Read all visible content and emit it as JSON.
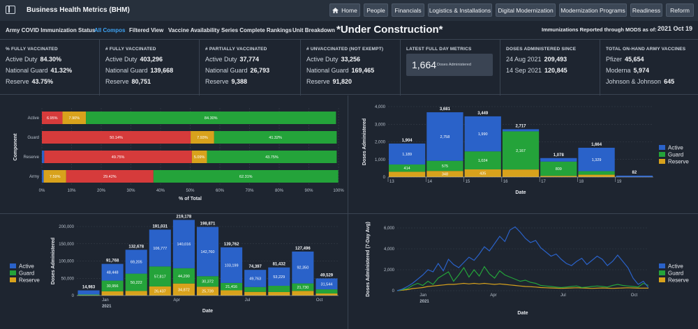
{
  "app": {
    "title": "Business Health Metrics (BHM)"
  },
  "nav": {
    "home": "Home",
    "people": "People",
    "financials": "Financials",
    "logistics": "Logistics & Installations",
    "digital": "Digital Modernization",
    "programs": "Modernization Programs",
    "readiness": "Readiness",
    "reform": "Reform"
  },
  "tabs": {
    "t1": "Army COVID Immunization Status",
    "t2": "All Compos",
    "t3": "Filtered View",
    "t4": "Vaccine Availability",
    "t5": "Series Complete Rankings",
    "t6": "Unit Breakdown"
  },
  "under_construction": "*Under Construction*",
  "mods": {
    "label": "Immunizations Reported through MODS as of:",
    "date": "2021 Oct 19"
  },
  "kpi": {
    "fully_pct": {
      "title": "% FULLY VACCINATED",
      "r1l": "Active Duty",
      "r1v": "84.30%",
      "r2l": "National Guard",
      "r2v": "41.32%",
      "r3l": "Reserve",
      "r3v": "43.75%"
    },
    "fully_num": {
      "title": "# FULLY VACCINATED",
      "r1l": "Active Duty",
      "r1v": "403,296",
      "r2l": "National Guard",
      "r2v": "139,668",
      "r3l": "Reserve",
      "r3v": "80,751"
    },
    "partial": {
      "title": "# PARTIALLY VACCINATED",
      "r1l": "Active Duty",
      "r1v": "37,774",
      "r2l": "National Guard",
      "r2v": "26,793",
      "r3l": "Reserve",
      "r3v": "9,388"
    },
    "unvax": {
      "title": "# UNVACCINATED (NOT EXEMPT)",
      "r1l": "Active Duty",
      "r1v": "33,256",
      "r2l": "National Guard",
      "r2v": "169,465",
      "r3l": "Reserve",
      "r3v": "91,820"
    },
    "latest": {
      "title": "LATEST FULL DAY METRICS",
      "value": "1,664",
      "label": "Doses Administered"
    },
    "since": {
      "title": "DOSES ADMINISTERED SINCE",
      "r1l": "24 Aug 2021",
      "r1v": "209,493",
      "r2l": "14 Sep 2021",
      "r2v": "120,845"
    },
    "onhand": {
      "title": "TOTAL ON-HAND ARMY VACCINES",
      "r1l": "Pfizer",
      "r1v": "45,654",
      "r2l": "Moderna",
      "r2v": "5,974",
      "r3l": "Johnson & Johnson",
      "r3v": "645"
    }
  },
  "colors": {
    "active": "#2a62c9",
    "guard": "#24a33a",
    "reserve": "#d8a21c",
    "red": "#d63b3b",
    "axis": "#b9c2cd",
    "grid": "#39414d"
  },
  "chart_data": [
    {
      "type": "bar",
      "orientation": "horizontal-stacked",
      "ylabel": "Component",
      "xlabel": "% of Total",
      "categories": [
        "Active",
        "Guard",
        "Reserve",
        "Army"
      ],
      "segments": [
        {
          "values": [
            6.95,
            7.9,
            84.3
          ],
          "labels": [
            "6.95%",
            "7.90%",
            "84.30%"
          ],
          "colors": [
            "red",
            "reserve",
            "guard"
          ]
        },
        {
          "values": [
            50.14,
            7.93,
            41.32
          ],
          "labels": [
            "50.14%",
            "7.93%",
            "41.32%"
          ],
          "colors": [
            "red",
            "reserve",
            "guard"
          ]
        },
        {
          "values": [
            0.8,
            49.75,
            5.09,
            43.75
          ],
          "labels": [
            "",
            "49.75%",
            "5.09%",
            "43.75%"
          ],
          "colors": [
            "active",
            "red",
            "reserve",
            "guard"
          ]
        },
        {
          "values": [
            0.6,
            7.59,
            29.42,
            62.31
          ],
          "labels": [
            "",
            "7.59%",
            "29.42%",
            "62.31%"
          ],
          "colors": [
            "active",
            "reserve",
            "red",
            "guard"
          ]
        }
      ],
      "xticks": [
        "0%",
        "10%",
        "20%",
        "30%",
        "40%",
        "50%",
        "60%",
        "70%",
        "80%",
        "90%",
        "100%"
      ]
    },
    {
      "type": "bar",
      "orientation": "vertical-stacked",
      "xlabel": "Date",
      "ylabel": "Doses Administered",
      "ylim": [
        0,
        4000
      ],
      "yticks": [
        "0",
        "1,000",
        "2,000",
        "3,000",
        "4,000"
      ],
      "categories": [
        "13",
        "14",
        "15",
        "16",
        "17",
        "18",
        "19"
      ],
      "series": [
        {
          "name": "Active",
          "values": [
            1189,
            2758,
            1990,
            120,
            200,
            1329,
            82
          ],
          "labels": [
            "1,189",
            "2,758",
            "1,990",
            "",
            "",
            "1,329",
            ""
          ]
        },
        {
          "name": "Guard",
          "values": [
            414,
            575,
            1024,
            2167,
            809,
            200,
            0
          ],
          "labels": [
            "414",
            "575",
            "1,024",
            "2,167",
            "809",
            "",
            ""
          ]
        },
        {
          "name": "Reserve",
          "values": [
            300,
            348,
            435,
            430,
            69,
            135,
            0
          ],
          "labels": [
            "",
            "348",
            "435",
            "",
            "",
            "",
            ""
          ]
        }
      ],
      "totals": [
        "1,904",
        "3,681",
        "3,449",
        "2,717",
        "1,078",
        "1,664",
        "82"
      ]
    },
    {
      "type": "bar",
      "orientation": "vertical-stacked",
      "xlabel": "Date",
      "ylabel": "Doses Administered",
      "ylim": [
        0,
        200000
      ],
      "yticks": [
        "0",
        "50,000",
        "100,000",
        "150,000",
        "200,000"
      ],
      "xticks": [
        "Jan",
        "Apr",
        "Jul",
        "Oct"
      ],
      "xyear": "2021",
      "series": [
        {
          "name": "Active",
          "values": [
            12000,
            48448,
            69205,
            106777,
            140016,
            142760,
            103199,
            49763,
            53229,
            92350,
            31544
          ],
          "labels": [
            "",
            "48,448",
            "69,205",
            "106,777",
            "140,016",
            "142,760",
            "103,199",
            "49,763",
            "53,229",
            "92,350",
            "31,544"
          ]
        },
        {
          "name": "Guard",
          "values": [
            2000,
            30956,
            50222,
            57817,
            44290,
            30372,
            21416,
            14000,
            18000,
            21730,
            12000
          ],
          "labels": [
            "",
            "30,956",
            "50,222",
            "57,817",
            "44,290",
            "30,372",
            "21,416",
            "",
            "",
            "21,730",
            ""
          ]
        },
        {
          "name": "Reserve",
          "values": [
            983,
            12364,
            13251,
            26437,
            34872,
            25739,
            15147,
            10634,
            10203,
            13416,
            5985
          ],
          "labels": [
            "",
            "",
            "",
            "26,437",
            "34,872",
            "25,739",
            "",
            "",
            "",
            "",
            ""
          ]
        }
      ],
      "totals": [
        "14,983",
        "91,768",
        "132,678",
        "191,031",
        "219,178",
        "198,871",
        "139,762",
        "74,397",
        "81,432",
        "127,496",
        "49,529"
      ]
    },
    {
      "type": "line",
      "xlabel": "Date",
      "ylabel": "Doses Administered (7-Day Avg)",
      "ylim": [
        0,
        6000
      ],
      "yticks": [
        "0",
        "2,000",
        "4,000",
        "6,000"
      ],
      "xticks": [
        "Jan",
        "Apr",
        "Jul",
        "Oct"
      ],
      "xyear": "2021",
      "series": [
        {
          "name": "Active",
          "values": [
            0,
            150,
            400,
            700,
            1100,
            1500,
            2000,
            1800,
            2600,
            1900,
            3000,
            2500,
            2200,
            2700,
            3200,
            2900,
            3500,
            4200,
            3800,
            4500,
            5200,
            4700,
            5800,
            6100,
            5600,
            5000,
            4600,
            4800,
            4100,
            3700,
            3300,
            3500,
            3000,
            2600,
            2400,
            2800,
            3100,
            2500,
            2900,
            3300,
            3000,
            2400,
            2800,
            3400,
            2800,
            2200,
            1200,
            600,
            900,
            300
          ]
        },
        {
          "name": "Guard",
          "values": [
            0,
            100,
            200,
            500,
            700,
            500,
            900,
            600,
            1200,
            1500,
            1800,
            900,
            1500,
            2200,
            1300,
            2000,
            1400,
            2300,
            1600,
            1200,
            1900,
            1500,
            1300,
            1100,
            900,
            1000,
            800,
            700,
            500,
            450,
            400,
            350,
            300,
            350,
            400,
            450,
            300,
            350,
            400,
            450,
            400,
            350,
            500,
            600,
            500,
            450,
            400,
            350,
            700,
            500
          ]
        },
        {
          "name": "Reserve",
          "values": [
            0,
            50,
            100,
            200,
            250,
            300,
            400,
            450,
            500,
            550,
            600,
            600,
            650,
            700,
            650,
            700,
            650,
            700,
            650,
            600,
            650,
            600,
            550,
            500,
            450,
            400,
            380,
            350,
            300,
            280,
            260,
            240,
            220,
            240,
            260,
            280,
            260,
            240,
            220,
            240,
            260,
            240,
            220,
            240,
            260,
            280,
            260,
            240,
            250,
            240
          ]
        }
      ]
    }
  ],
  "legend": {
    "active": "Active",
    "guard": "Guard",
    "reserve": "Reserve"
  }
}
